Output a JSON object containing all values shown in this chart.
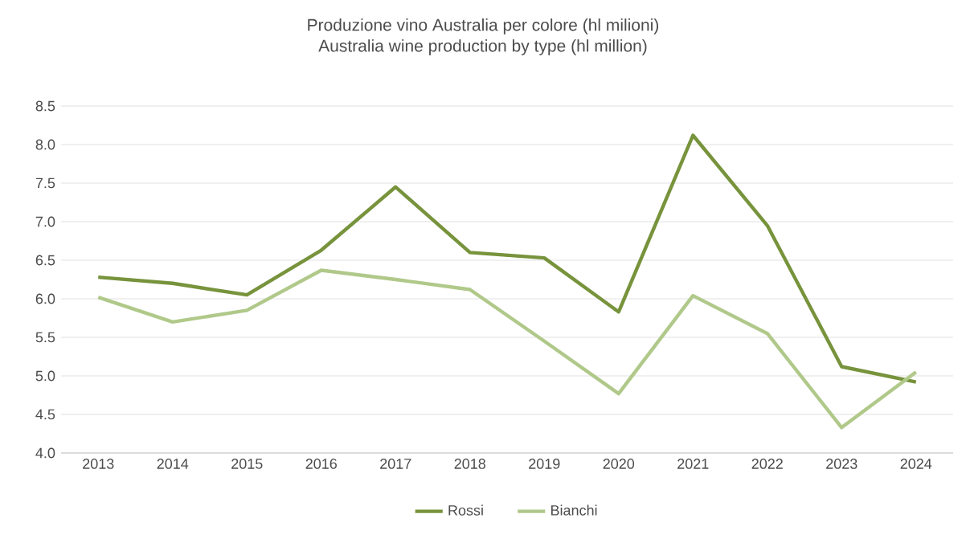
{
  "chart_data": {
    "type": "line",
    "title": "Produzione vino Australia per colore (hl milioni)",
    "subtitle": "Australia wine production by type (hl million)",
    "categories": [
      "2013",
      "2014",
      "2015",
      "2016",
      "2017",
      "2018",
      "2019",
      "2020",
      "2021",
      "2022",
      "2023",
      "2024"
    ],
    "series": [
      {
        "name": "Rossi",
        "color": "#77933c",
        "values": [
          6.28,
          6.2,
          6.05,
          6.63,
          7.45,
          6.6,
          6.53,
          5.83,
          8.12,
          6.95,
          5.12,
          4.92
        ]
      },
      {
        "name": "Bianchi",
        "color": "#b0c98a",
        "values": [
          6.02,
          5.7,
          5.85,
          6.37,
          6.25,
          6.12,
          5.45,
          4.77,
          6.04,
          5.55,
          4.33,
          5.05
        ]
      }
    ],
    "ylim": [
      4.0,
      8.5
    ],
    "yticks": [
      {
        "value": 4,
        "label": "4.0"
      },
      4.5,
      {
        "value": 5,
        "label": "5.0"
      },
      5.5,
      {
        "value": 6,
        "label": "6.0"
      },
      6.5,
      {
        "value": 7,
        "label": "7.0"
      },
      7.5,
      {
        "value": 8,
        "label": "8.0"
      },
      8.5
    ],
    "grid": "y",
    "legend": "bottom",
    "marker": "none",
    "line_style": "solid"
  }
}
